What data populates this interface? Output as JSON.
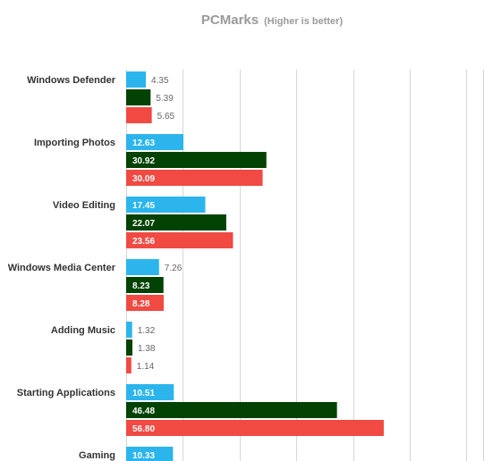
{
  "chart_data": {
    "type": "bar",
    "orientation": "horizontal",
    "title": "PCMarks",
    "subtitle": "(Higher is better)",
    "xlabel": "",
    "ylabel": "",
    "xlim": [
      0,
      80
    ],
    "grid": true,
    "categories": [
      "Windows Defender",
      "Importing Photos",
      "Video Editing",
      "Windows Media Center",
      "Adding Music",
      "Starting Applications",
      "Gaming"
    ],
    "series": [
      {
        "color": "#2bb5ec",
        "values": [
          4.35,
          12.63,
          17.45,
          7.26,
          1.32,
          10.51,
          10.33
        ],
        "labels": [
          "4.35",
          "12.63",
          "17.45",
          "7.26",
          "1.32",
          "10.51",
          "10.33"
        ]
      },
      {
        "color": "#024202",
        "values": [
          5.39,
          30.92,
          22.07,
          8.23,
          1.38,
          46.48,
          null
        ],
        "labels": [
          "5.39",
          "30.92",
          "22.07",
          "8.23",
          "1.38",
          "46.48",
          null
        ]
      },
      {
        "color": "#f04a43",
        "values": [
          5.65,
          30.09,
          23.56,
          8.28,
          1.14,
          56.8,
          null
        ],
        "labels": [
          "5.65",
          "30.09",
          "23.56",
          "8.28",
          "1.14",
          "56.80",
          null
        ]
      }
    ]
  }
}
